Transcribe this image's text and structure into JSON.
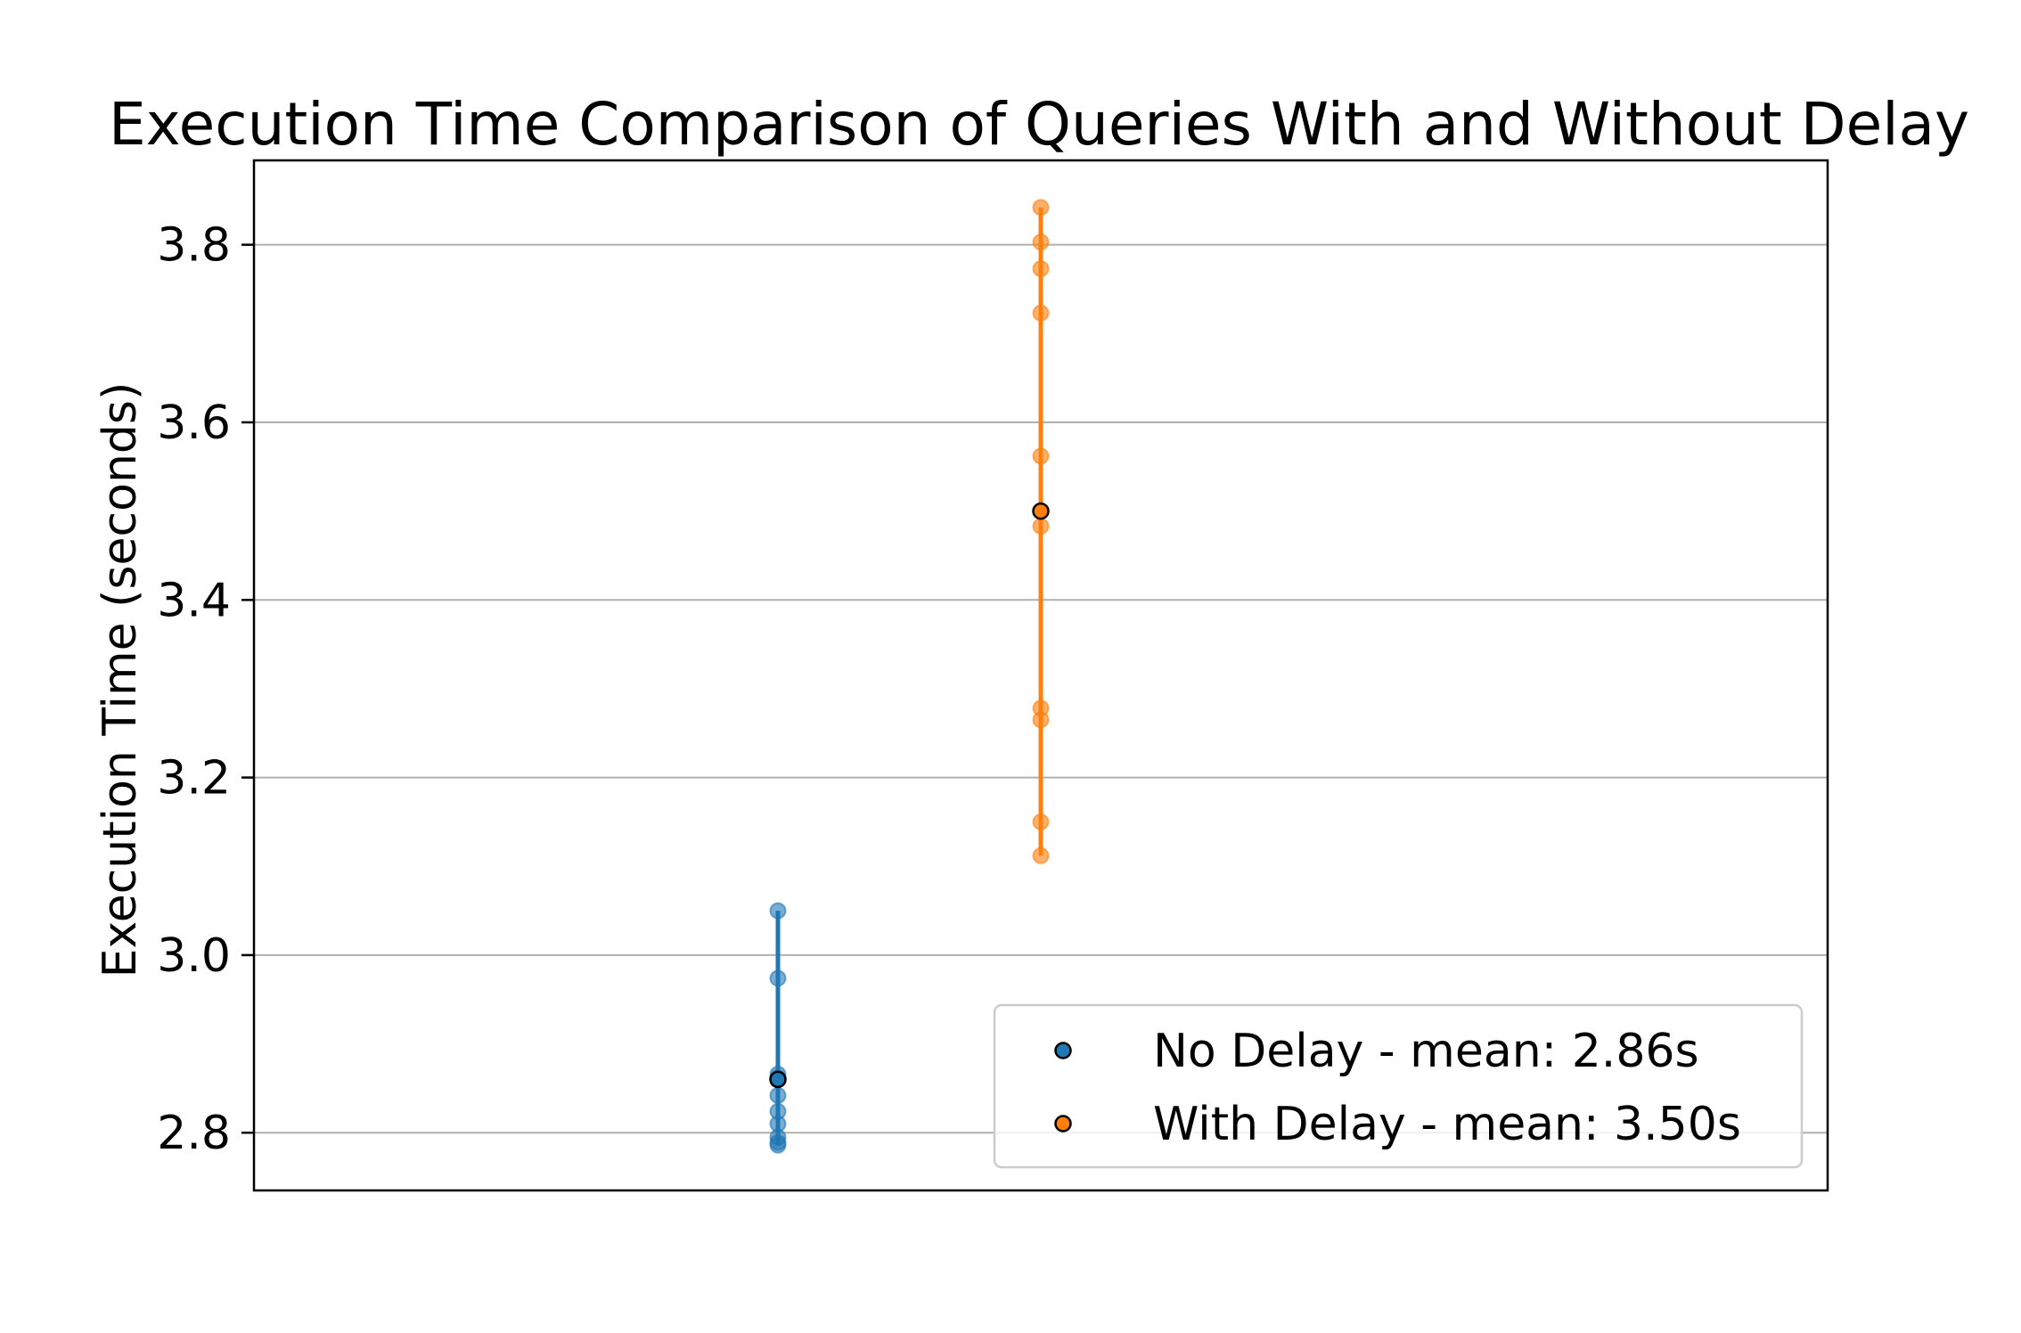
{
  "chart_data": {
    "type": "scatter",
    "title": "Execution Time Comparison of Queries With and Without Delay",
    "xlabel": "",
    "ylabel": "Execution Time (seconds)",
    "ylim": [
      2.735,
      3.895
    ],
    "yticks": [
      2.8,
      3.0,
      3.2,
      3.4,
      3.6,
      3.8
    ],
    "ytick_labels": [
      "2.8",
      "3.0",
      "3.2",
      "3.4",
      "3.6",
      "3.8"
    ],
    "grid": "horizontal",
    "legend_position": "lower-right",
    "series": [
      {
        "name": "No Delay - mean: 2.86s",
        "color": "#1f77b4",
        "x": 1,
        "values": [
          3.05,
          2.974,
          2.866,
          2.862,
          2.842,
          2.824,
          2.81,
          2.795,
          2.789,
          2.786
        ],
        "mean": 2.86,
        "range": [
          2.786,
          3.05
        ]
      },
      {
        "name": "With Delay - mean: 3.50s",
        "color": "#ff7f0e",
        "x": 2,
        "values": [
          3.842,
          3.803,
          3.773,
          3.723,
          3.562,
          3.483,
          3.278,
          3.265,
          3.15,
          3.112
        ],
        "mean": 3.5,
        "range": [
          3.112,
          3.842
        ]
      }
    ]
  }
}
